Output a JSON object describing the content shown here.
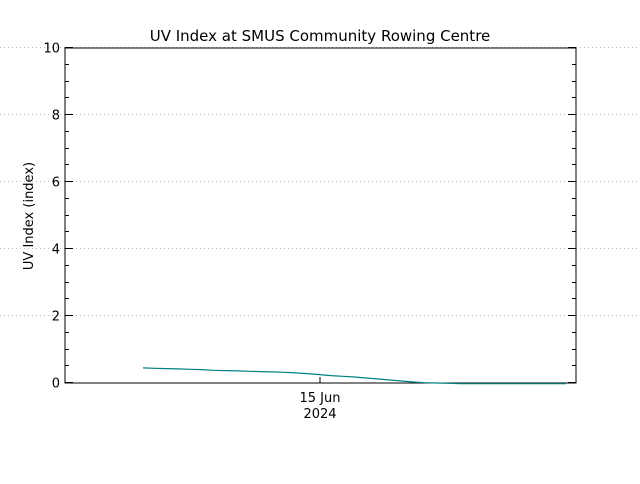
{
  "chart_data": {
    "type": "line",
    "title": "UV Index at SMUS Community Rowing Centre",
    "xlabel": "",
    "ylabel": "UV Index (index)",
    "x_tick_labels": [
      {
        "line1": "15 Jun",
        "line2": "2024"
      }
    ],
    "y_ticks": [
      "0",
      "2",
      "4",
      "6",
      "8",
      "10"
    ],
    "ylim": [
      0,
      10
    ],
    "grid": true,
    "series": [
      {
        "color": "#008080",
        "values": [
          0.45,
          0.44,
          0.43,
          0.42,
          0.41,
          0.4,
          0.38,
          0.37,
          0.36,
          0.35,
          0.34,
          0.33,
          0.32,
          0.3,
          0.28,
          0.25,
          0.22,
          0.2,
          0.18,
          0.15,
          0.12,
          0.09,
          0.06,
          0.03,
          0.01,
          0.0,
          -0.01,
          -0.02,
          -0.02,
          -0.02,
          -0.02,
          -0.02,
          -0.02,
          -0.02,
          -0.02,
          -0.02,
          -0.02
        ]
      }
    ]
  }
}
